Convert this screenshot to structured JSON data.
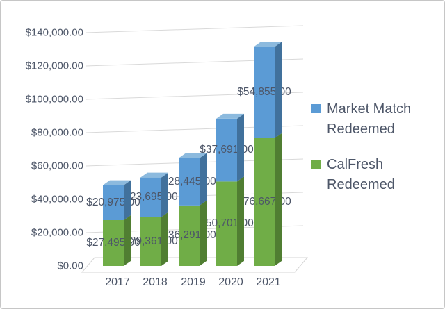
{
  "chart_data": {
    "type": "bar",
    "subtype": "stacked-column-3d",
    "title": "",
    "xlabel": "",
    "ylabel": "",
    "categories": [
      "2017",
      "2018",
      "2019",
      "2020",
      "2021"
    ],
    "series": [
      {
        "name": "CalFresh Redeemed",
        "color": "#70AD47",
        "side_color": "#507E32",
        "top_color": "#8dc268",
        "values": [
          27495,
          29361,
          36291,
          50701,
          76667
        ],
        "labels": [
          "$27,495.00",
          "$29,361.00",
          "$36,291.00",
          "$50,701.00",
          "$76,667.00"
        ]
      },
      {
        "name": "Market Match Redeemed",
        "color": "#5B9BD5",
        "side_color": "#41719C",
        "top_color": "#8cbade",
        "values": [
          20975,
          23695,
          28445,
          37691,
          54855
        ],
        "labels": [
          "$20,975.00",
          "$23,695.00",
          "$28,445.00",
          "$37,691.00",
          "$54,855.00"
        ]
      }
    ],
    "y_ticks": [
      "$0.00",
      "$20,000.00",
      "$40,000.00",
      "$60,000.00",
      "$80,000.00",
      "$100,000.00",
      "$120,000.00",
      "$140,000.00"
    ],
    "ylim": [
      0,
      140000
    ],
    "grid": "on",
    "gridline_color": "#d9d9d9",
    "legend_position": "right"
  },
  "legend": {
    "items": [
      {
        "label": "Market Match Redeemed",
        "color": "#5B9BD5"
      },
      {
        "label": "CalFresh Redeemed",
        "color": "#70AD47"
      }
    ]
  }
}
